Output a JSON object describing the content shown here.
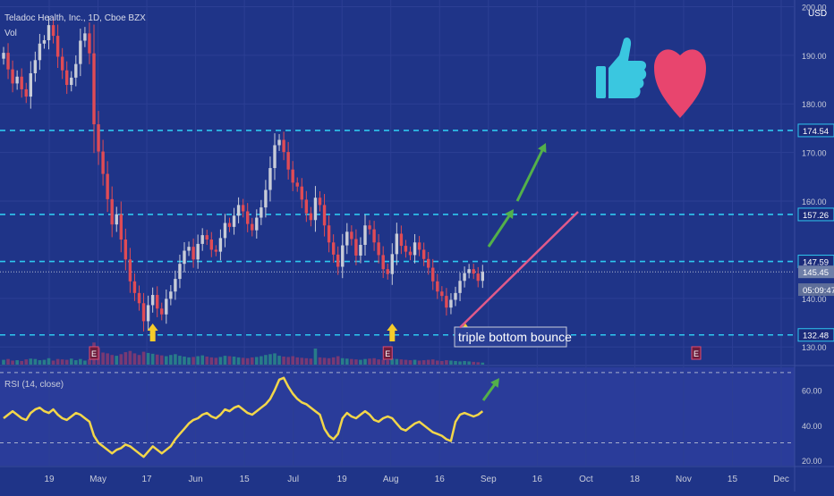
{
  "header": {
    "title": "Teladoc Health, Inc., 1D, Cboe BZX",
    "vol_label": "Vol",
    "currency": "USD"
  },
  "colors": {
    "background": "#1f3488",
    "rsi_band": "#2a3c9a",
    "grid": "#2c3f94",
    "up": "#c8ccd8",
    "down": "#e04b55",
    "vol_up": "#2a8f8a",
    "vol_down": "#8e3b6e",
    "level_line": "#2ec8f0",
    "trend_line": "#e05a8a",
    "arrow_green": "#53b04a",
    "arrow_yellow": "#f5cc2a",
    "rsi_line": "#f2d64a",
    "thumb": "#3ac7e0",
    "heart": "#e8456e"
  },
  "chart_data": {
    "type": "candlestick",
    "symbol": "Teladoc Health, Inc.",
    "interval": "1D",
    "exchange": "Cboe BZX",
    "price_axis": {
      "ylim": [
        126,
        201
      ],
      "ticks": [
        200,
        190,
        180,
        170,
        160,
        140,
        130
      ]
    },
    "x_ticks": [
      "19",
      "May",
      "17",
      "Jun",
      "15",
      "Jul",
      "19",
      "Aug",
      "16",
      "Sep",
      "16",
      "Oct",
      "18",
      "Nov",
      "15",
      "Dec"
    ],
    "price_tags": [
      {
        "label": "174.54",
        "value": 174.54,
        "style": "level"
      },
      {
        "label": "157.26",
        "value": 157.26,
        "style": "level"
      },
      {
        "label": "147.59",
        "value": 147.59,
        "style": "level"
      },
      {
        "label": "145.45",
        "value": 145.45,
        "style": "last"
      },
      {
        "label": "05:09:47",
        "value": 141.8,
        "style": "timer"
      },
      {
        "label": "132.48",
        "value": 132.48,
        "style": "level"
      }
    ],
    "levels": [
      174.54,
      157.26,
      147.59,
      132.48
    ],
    "last_price": 145.45,
    "closes": [
      190.5,
      187.1,
      184.2,
      185.6,
      183.0,
      181.5,
      186.3,
      189.0,
      192.4,
      193.1,
      196.2,
      194.0,
      189.7,
      186.9,
      183.9,
      185.4,
      188.2,
      193.0,
      194.5,
      190.4,
      175.8,
      170.2,
      165.6,
      160.4,
      155.2,
      157.3,
      152.1,
      148.0,
      143.5,
      141.1,
      139.0,
      135.3,
      138.6,
      140.7,
      137.9,
      136.7,
      139.9,
      141.4,
      144.0,
      147.1,
      149.8,
      150.6,
      148.0,
      151.2,
      153.0,
      152.1,
      150.0,
      149.6,
      152.4,
      155.5,
      154.7,
      157.0,
      159.2,
      157.9,
      155.3,
      154.0,
      156.6,
      158.7,
      162.3,
      166.8,
      171.5,
      172.6,
      170.1,
      166.5,
      163.8,
      163.0,
      160.3,
      157.5,
      156.1,
      160.7,
      159.2,
      155.0,
      151.5,
      149.0,
      146.5,
      150.9,
      153.7,
      152.2,
      148.8,
      151.0,
      155.0,
      154.2,
      151.5,
      148.9,
      146.0,
      145.0,
      149.1,
      153.3,
      150.8,
      149.6,
      148.9,
      151.5,
      150.0,
      148.1,
      146.3,
      143.5,
      141.4,
      140.5,
      138.1,
      139.7,
      141.1,
      143.6,
      145.2,
      146.0,
      145.1,
      143.6,
      145.45
    ],
    "volume": {
      "ylim": [
        0,
        100
      ],
      "values": [
        12,
        14,
        10,
        11,
        9,
        13,
        15,
        14,
        11,
        12,
        16,
        10,
        14,
        13,
        12,
        15,
        11,
        14,
        10,
        13,
        55,
        42,
        30,
        28,
        24,
        22,
        26,
        31,
        34,
        28,
        24,
        32,
        29,
        27,
        25,
        23,
        21,
        24,
        26,
        22,
        20,
        18,
        19,
        21,
        23,
        20,
        18,
        17,
        19,
        22,
        21,
        20,
        18,
        17,
        16,
        18,
        19,
        21,
        24,
        26,
        28,
        22,
        20,
        19,
        21,
        18,
        17,
        16,
        15,
        40,
        18,
        17,
        16,
        18,
        21,
        16,
        15,
        14,
        13,
        12,
        14,
        15,
        16,
        13,
        12,
        11,
        15,
        14,
        13,
        12,
        11,
        12,
        10,
        11,
        12,
        13,
        10,
        9,
        11,
        10,
        9,
        8,
        9,
        8,
        7,
        6,
        5
      ]
    },
    "earnings_markers": [
      {
        "label": "E",
        "index": 20
      },
      {
        "label": "E",
        "index": 85
      },
      {
        "label": "E",
        "index": 0,
        "future": true
      }
    ],
    "arrows": {
      "yellow_up": [
        33,
        86,
        103
      ],
      "green": 3
    },
    "annotation": "triple bottom bounce",
    "rsi": {
      "label": "RSI (14, close)",
      "ylim": [
        17,
        73
      ],
      "ticks": [
        60,
        40,
        20
      ],
      "band": [
        70,
        30
      ],
      "values": [
        44,
        46,
        48,
        46,
        44,
        43,
        47,
        49,
        50,
        48,
        47,
        49,
        46,
        44,
        43,
        45,
        47,
        46,
        44,
        42,
        34,
        30,
        28,
        26,
        24,
        26,
        27,
        29,
        28,
        26,
        24,
        22,
        25,
        28,
        26,
        24,
        26,
        28,
        32,
        35,
        38,
        41,
        43,
        44,
        46,
        47,
        45,
        44,
        46,
        49,
        48,
        50,
        51,
        49,
        47,
        46,
        48,
        50,
        52,
        55,
        60,
        66,
        67,
        62,
        58,
        55,
        53,
        52,
        50,
        48,
        46,
        38,
        34,
        32,
        35,
        44,
        47,
        45,
        44,
        46,
        48,
        46,
        43,
        42,
        44,
        45,
        44,
        41,
        38,
        37,
        39,
        41,
        42,
        40,
        38,
        36,
        35,
        34,
        32,
        31,
        42,
        46,
        47,
        46,
        45,
        46,
        48
      ]
    }
  },
  "stickers": {
    "thumbs": "thumbs-up-icon",
    "heart": "heart-icon"
  }
}
